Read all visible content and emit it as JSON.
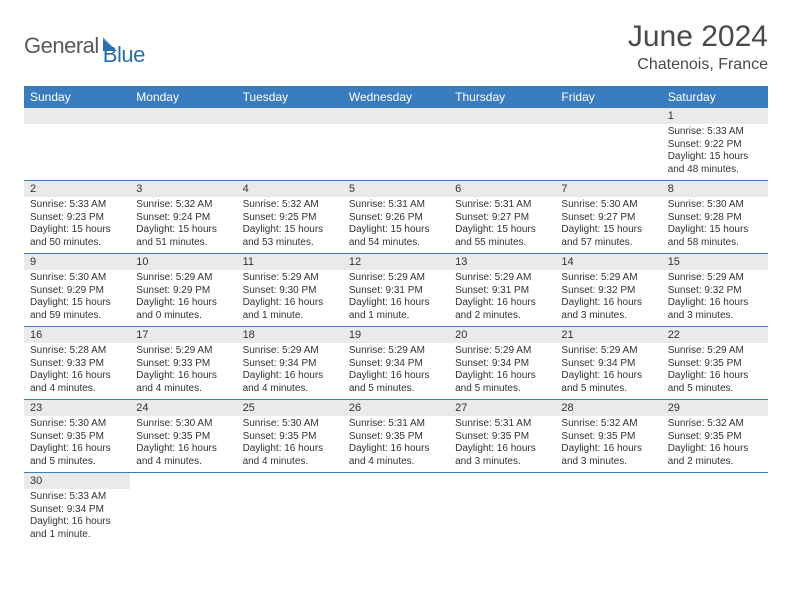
{
  "logo": {
    "text1": "General",
    "text2": "Blue"
  },
  "title": "June 2024",
  "location": "Chatenois, France",
  "colors": {
    "header_bg": "#3a7dbf",
    "header_text": "#ffffff",
    "daynum_bg": "#eaeaea",
    "cell_border": "#3a7dbf",
    "logo_gray": "#5a5a5a",
    "logo_blue": "#2b6faa",
    "title_color": "#4a4a4a"
  },
  "day_headers": [
    "Sunday",
    "Monday",
    "Tuesday",
    "Wednesday",
    "Thursday",
    "Friday",
    "Saturday"
  ],
  "weeks": [
    [
      {
        "empty": true
      },
      {
        "empty": true
      },
      {
        "empty": true
      },
      {
        "empty": true
      },
      {
        "empty": true
      },
      {
        "empty": true
      },
      {
        "num": "1",
        "sunrise": "Sunrise: 5:33 AM",
        "sunset": "Sunset: 9:22 PM",
        "daylight": "Daylight: 15 hours and 48 minutes."
      }
    ],
    [
      {
        "num": "2",
        "sunrise": "Sunrise: 5:33 AM",
        "sunset": "Sunset: 9:23 PM",
        "daylight": "Daylight: 15 hours and 50 minutes."
      },
      {
        "num": "3",
        "sunrise": "Sunrise: 5:32 AM",
        "sunset": "Sunset: 9:24 PM",
        "daylight": "Daylight: 15 hours and 51 minutes."
      },
      {
        "num": "4",
        "sunrise": "Sunrise: 5:32 AM",
        "sunset": "Sunset: 9:25 PM",
        "daylight": "Daylight: 15 hours and 53 minutes."
      },
      {
        "num": "5",
        "sunrise": "Sunrise: 5:31 AM",
        "sunset": "Sunset: 9:26 PM",
        "daylight": "Daylight: 15 hours and 54 minutes."
      },
      {
        "num": "6",
        "sunrise": "Sunrise: 5:31 AM",
        "sunset": "Sunset: 9:27 PM",
        "daylight": "Daylight: 15 hours and 55 minutes."
      },
      {
        "num": "7",
        "sunrise": "Sunrise: 5:30 AM",
        "sunset": "Sunset: 9:27 PM",
        "daylight": "Daylight: 15 hours and 57 minutes."
      },
      {
        "num": "8",
        "sunrise": "Sunrise: 5:30 AM",
        "sunset": "Sunset: 9:28 PM",
        "daylight": "Daylight: 15 hours and 58 minutes."
      }
    ],
    [
      {
        "num": "9",
        "sunrise": "Sunrise: 5:30 AM",
        "sunset": "Sunset: 9:29 PM",
        "daylight": "Daylight: 15 hours and 59 minutes."
      },
      {
        "num": "10",
        "sunrise": "Sunrise: 5:29 AM",
        "sunset": "Sunset: 9:29 PM",
        "daylight": "Daylight: 16 hours and 0 minutes."
      },
      {
        "num": "11",
        "sunrise": "Sunrise: 5:29 AM",
        "sunset": "Sunset: 9:30 PM",
        "daylight": "Daylight: 16 hours and 1 minute."
      },
      {
        "num": "12",
        "sunrise": "Sunrise: 5:29 AM",
        "sunset": "Sunset: 9:31 PM",
        "daylight": "Daylight: 16 hours and 1 minute."
      },
      {
        "num": "13",
        "sunrise": "Sunrise: 5:29 AM",
        "sunset": "Sunset: 9:31 PM",
        "daylight": "Daylight: 16 hours and 2 minutes."
      },
      {
        "num": "14",
        "sunrise": "Sunrise: 5:29 AM",
        "sunset": "Sunset: 9:32 PM",
        "daylight": "Daylight: 16 hours and 3 minutes."
      },
      {
        "num": "15",
        "sunrise": "Sunrise: 5:29 AM",
        "sunset": "Sunset: 9:32 PM",
        "daylight": "Daylight: 16 hours and 3 minutes."
      }
    ],
    [
      {
        "num": "16",
        "sunrise": "Sunrise: 5:28 AM",
        "sunset": "Sunset: 9:33 PM",
        "daylight": "Daylight: 16 hours and 4 minutes."
      },
      {
        "num": "17",
        "sunrise": "Sunrise: 5:29 AM",
        "sunset": "Sunset: 9:33 PM",
        "daylight": "Daylight: 16 hours and 4 minutes."
      },
      {
        "num": "18",
        "sunrise": "Sunrise: 5:29 AM",
        "sunset": "Sunset: 9:34 PM",
        "daylight": "Daylight: 16 hours and 4 minutes."
      },
      {
        "num": "19",
        "sunrise": "Sunrise: 5:29 AM",
        "sunset": "Sunset: 9:34 PM",
        "daylight": "Daylight: 16 hours and 5 minutes."
      },
      {
        "num": "20",
        "sunrise": "Sunrise: 5:29 AM",
        "sunset": "Sunset: 9:34 PM",
        "daylight": "Daylight: 16 hours and 5 minutes."
      },
      {
        "num": "21",
        "sunrise": "Sunrise: 5:29 AM",
        "sunset": "Sunset: 9:34 PM",
        "daylight": "Daylight: 16 hours and 5 minutes."
      },
      {
        "num": "22",
        "sunrise": "Sunrise: 5:29 AM",
        "sunset": "Sunset: 9:35 PM",
        "daylight": "Daylight: 16 hours and 5 minutes."
      }
    ],
    [
      {
        "num": "23",
        "sunrise": "Sunrise: 5:30 AM",
        "sunset": "Sunset: 9:35 PM",
        "daylight": "Daylight: 16 hours and 5 minutes."
      },
      {
        "num": "24",
        "sunrise": "Sunrise: 5:30 AM",
        "sunset": "Sunset: 9:35 PM",
        "daylight": "Daylight: 16 hours and 4 minutes."
      },
      {
        "num": "25",
        "sunrise": "Sunrise: 5:30 AM",
        "sunset": "Sunset: 9:35 PM",
        "daylight": "Daylight: 16 hours and 4 minutes."
      },
      {
        "num": "26",
        "sunrise": "Sunrise: 5:31 AM",
        "sunset": "Sunset: 9:35 PM",
        "daylight": "Daylight: 16 hours and 4 minutes."
      },
      {
        "num": "27",
        "sunrise": "Sunrise: 5:31 AM",
        "sunset": "Sunset: 9:35 PM",
        "daylight": "Daylight: 16 hours and 3 minutes."
      },
      {
        "num": "28",
        "sunrise": "Sunrise: 5:32 AM",
        "sunset": "Sunset: 9:35 PM",
        "daylight": "Daylight: 16 hours and 3 minutes."
      },
      {
        "num": "29",
        "sunrise": "Sunrise: 5:32 AM",
        "sunset": "Sunset: 9:35 PM",
        "daylight": "Daylight: 16 hours and 2 minutes."
      }
    ],
    [
      {
        "num": "30",
        "sunrise": "Sunrise: 5:33 AM",
        "sunset": "Sunset: 9:34 PM",
        "daylight": "Daylight: 16 hours and 1 minute."
      },
      {
        "empty": true
      },
      {
        "empty": true
      },
      {
        "empty": true
      },
      {
        "empty": true
      },
      {
        "empty": true
      },
      {
        "empty": true
      }
    ]
  ]
}
